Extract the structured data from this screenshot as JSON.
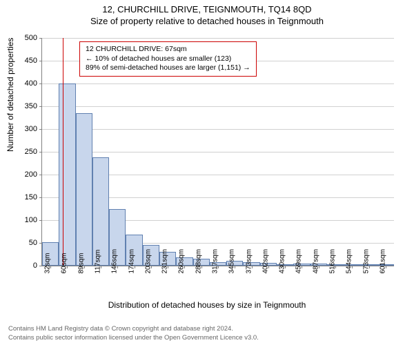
{
  "titles": {
    "main": "12, CHURCHILL DRIVE, TEIGNMOUTH, TQ14 8QD",
    "sub": "Size of property relative to detached houses in Teignmouth"
  },
  "axes": {
    "ylabel": "Number of detached properties",
    "xlabel": "Distribution of detached houses by size in Teignmouth",
    "ylim": [
      0,
      500
    ],
    "ytick_step": 50,
    "yticks": [
      0,
      50,
      100,
      150,
      200,
      250,
      300,
      350,
      400,
      450,
      500
    ],
    "xticks": [
      "32sqm",
      "60sqm",
      "89sqm",
      "117sqm",
      "146sqm",
      "174sqm",
      "203sqm",
      "231sqm",
      "260sqm",
      "288sqm",
      "317sqm",
      "345sqm",
      "373sqm",
      "402sqm",
      "430sqm",
      "459sqm",
      "487sqm",
      "516sqm",
      "544sqm",
      "573sqm",
      "601sqm"
    ]
  },
  "chart": {
    "type": "histogram",
    "bar_fill": "#c8d6ec",
    "bar_stroke": "#6080b0",
    "grid_color": "#d0d0d0",
    "axis_color": "#808080",
    "background_color": "#ffffff",
    "marker_color": "#cc0000",
    "marker_index": 1.25,
    "values": [
      52,
      400,
      335,
      238,
      125,
      68,
      45,
      30,
      18,
      15,
      8,
      10,
      8,
      6,
      3,
      5,
      4,
      2,
      1,
      3,
      2
    ]
  },
  "annotation": {
    "line1": "12 CHURCHILL DRIVE: 67sqm",
    "line2": "← 10% of detached houses are smaller (123)",
    "line3": "89% of semi-detached houses are larger (1,151) →",
    "border_color": "#cc0000",
    "fontsize": 10.5
  },
  "footer": {
    "line1": "Contains HM Land Registry data © Crown copyright and database right 2024.",
    "line2": "Contains public sector information licensed under the Open Government Licence v3.0."
  }
}
